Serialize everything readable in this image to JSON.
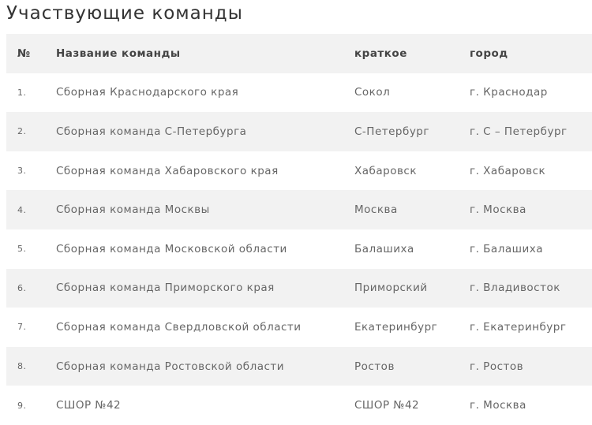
{
  "title": "Участвующие команды",
  "columns": [
    "№",
    "Название команды",
    "краткое",
    "город"
  ],
  "rows": [
    [
      "1.",
      "Сборная Краснодарского края",
      "Сокол",
      "г. Краснодар"
    ],
    [
      "2.",
      "Сборная команда С-Петербурга",
      "С-Петербург",
      "г. С – Петербург"
    ],
    [
      "3.",
      "Сборная команда Хабаровского края",
      "Хабаровск",
      "г. Хабаровск"
    ],
    [
      "4.",
      "Сборная команда Москвы",
      "Москва",
      "г. Москва"
    ],
    [
      "5.",
      "Сборная команда Московской области",
      "Балашиха",
      "г. Балашиха"
    ],
    [
      "6.",
      "Сборная команда Приморского края",
      "Приморский",
      "г. Владивосток"
    ],
    [
      "7.",
      "Сборная команда Свердловской области",
      "Екатеринбург",
      "г. Екатеринбург"
    ],
    [
      "8.",
      "Сборная команда Ростовской области",
      "Ростов",
      "г. Ростов"
    ],
    [
      "9.",
      "СШОР №42",
      "СШОР №42",
      "г. Москва"
    ]
  ]
}
